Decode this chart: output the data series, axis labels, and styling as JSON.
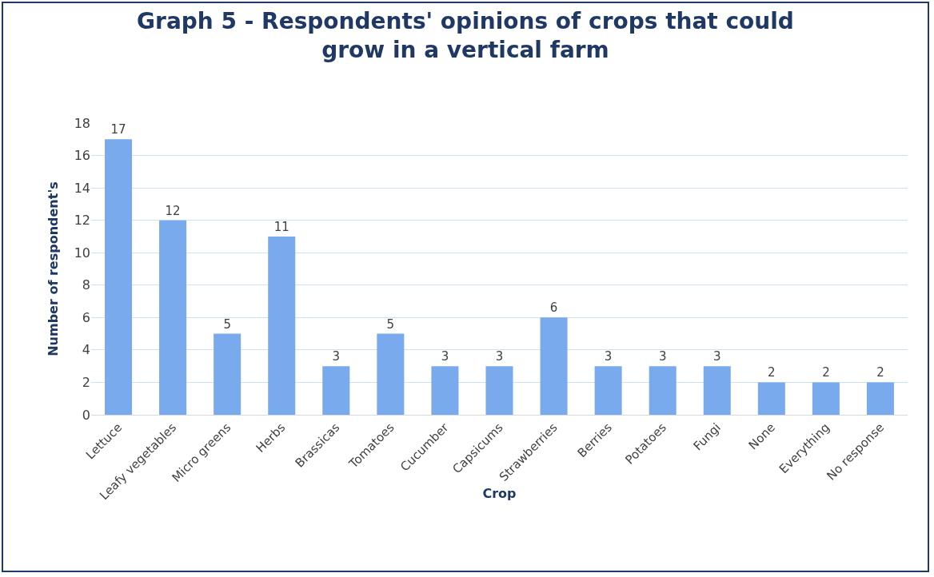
{
  "chart_data": {
    "type": "bar",
    "title": "Graph 5 - Respondents' opinions of crops that could grow in a vertical farm",
    "xlabel": "Crop",
    "ylabel": "Number of respondent's",
    "categories": [
      "Lettuce",
      "Leafy vegetables",
      "Micro greens",
      "Herbs",
      "Brassicas",
      "Tomatoes",
      "Cucumber",
      "Capsicums",
      "Strawberries",
      "Berries",
      "Potatoes",
      "Fungi",
      "None",
      "Everything",
      "No response"
    ],
    "values": [
      17,
      12,
      5,
      11,
      3,
      5,
      3,
      3,
      6,
      3,
      3,
      3,
      2,
      2,
      2
    ],
    "color": "#7aaaee",
    "ylim": [
      0,
      18
    ],
    "yticks": [
      0,
      2,
      4,
      6,
      8,
      10,
      12,
      14,
      16,
      18
    ],
    "grid": "y",
    "data_labels": true,
    "legend": false
  }
}
